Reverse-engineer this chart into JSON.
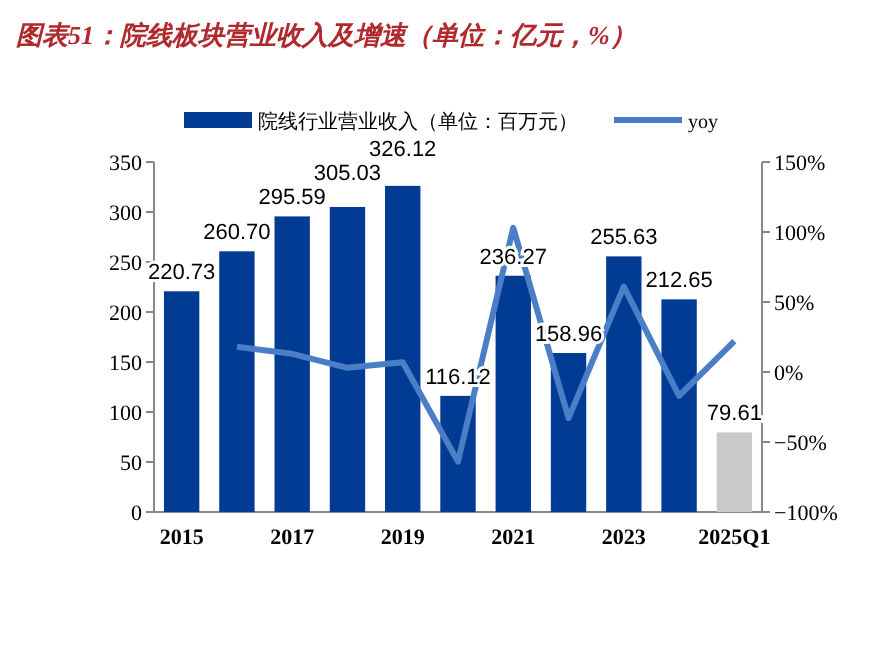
{
  "chart_data": {
    "type": "bar",
    "title": "图表51：院线板块营业收入及增速（单位：亿元，%）",
    "categories": [
      "2015",
      null,
      "2017",
      null,
      "2019",
      null,
      "2021",
      null,
      "2023",
      null,
      "2025Q1"
    ],
    "series": [
      {
        "name": "院线行业营业收入（单位：百万元）",
        "color": "#023b93",
        "colors": [
          "#023b93",
          "#023b93",
          "#023b93",
          "#023b93",
          "#023b93",
          "#023b93",
          "#023b93",
          "#023b93",
          "#023b93",
          "#023b93",
          "#c9c9c9"
        ],
        "values": [
          220.73,
          260.7,
          295.59,
          305.03,
          326.12,
          116.12,
          236.27,
          158.96,
          255.63,
          212.65,
          79.61
        ],
        "value_labels": [
          "220.73",
          "260.70",
          "295.59",
          "305.03",
          "326.12",
          "116.12",
          "236.27",
          "158.96",
          "255.63",
          "212.65",
          "79.61"
        ]
      },
      {
        "name": "yoy",
        "type": "line",
        "axis": "y2",
        "color": "#4a7fc8",
        "values": [
          null,
          18,
          13,
          3,
          7,
          -64,
          103,
          -33,
          61,
          -17,
          22
        ]
      }
    ],
    "ylim": [
      0,
      350
    ],
    "yticks": [
      0,
      50,
      100,
      150,
      200,
      250,
      300,
      350
    ],
    "y2lim": [
      -100,
      150
    ],
    "y2ticks": [
      {
        "value": -100,
        "label": "−100%"
      },
      {
        "value": -50,
        "label": "−50%"
      },
      {
        "value": 0,
        "label": "0%"
      },
      {
        "value": 50,
        "label": "50%"
      },
      {
        "value": 100,
        "label": "100%"
      },
      {
        "value": 150,
        "label": "150%"
      }
    ],
    "legend": "top",
    "marker": "none"
  }
}
